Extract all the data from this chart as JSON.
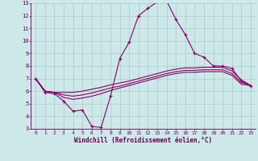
{
  "xlabel": "Windchill (Refroidissement éolien,°C)",
  "bg_color": "#cce8e8",
  "grid_color": "#b0c8c8",
  "line_color": "#880066",
  "axis_color": "#660055",
  "xlim": [
    -0.5,
    23.5
  ],
  "ylim": [
    3,
    13
  ],
  "yticks": [
    3,
    4,
    5,
    6,
    7,
    8,
    9,
    10,
    11,
    12,
    13
  ],
  "xticks": [
    0,
    1,
    2,
    3,
    4,
    5,
    6,
    7,
    8,
    9,
    10,
    11,
    12,
    13,
    14,
    15,
    16,
    17,
    18,
    19,
    20,
    21,
    22,
    23
  ],
  "curve1_x": [
    0,
    1,
    2,
    3,
    4,
    5,
    6,
    7,
    8,
    9,
    10,
    11,
    12,
    13,
    14,
    15,
    16,
    17,
    18,
    19,
    20,
    21,
    22,
    23
  ],
  "curve1_y": [
    7.0,
    5.9,
    5.8,
    5.2,
    4.4,
    4.5,
    3.2,
    3.1,
    5.6,
    8.6,
    9.9,
    12.0,
    12.6,
    13.1,
    13.2,
    11.7,
    10.5,
    9.0,
    8.7,
    8.0,
    8.0,
    7.8,
    6.8,
    6.4
  ],
  "curve2_x": [
    0,
    1,
    2,
    3,
    4,
    5,
    6,
    7,
    8,
    9,
    10,
    11,
    12,
    13,
    14,
    15,
    16,
    17,
    18,
    19,
    20,
    21,
    22,
    23
  ],
  "curve2_y": [
    7.0,
    6.0,
    5.9,
    5.9,
    5.9,
    6.0,
    6.15,
    6.3,
    6.5,
    6.65,
    6.8,
    7.0,
    7.2,
    7.4,
    7.6,
    7.75,
    7.85,
    7.85,
    7.9,
    7.9,
    7.9,
    7.6,
    6.9,
    6.45
  ],
  "curve3_x": [
    0,
    1,
    2,
    3,
    4,
    5,
    6,
    7,
    8,
    9,
    10,
    11,
    12,
    13,
    14,
    15,
    16,
    17,
    18,
    19,
    20,
    21,
    22,
    23
  ],
  "curve3_y": [
    7.0,
    6.0,
    5.9,
    5.7,
    5.6,
    5.7,
    5.85,
    6.05,
    6.25,
    6.4,
    6.6,
    6.8,
    7.0,
    7.2,
    7.4,
    7.55,
    7.65,
    7.65,
    7.7,
    7.7,
    7.7,
    7.4,
    6.7,
    6.45
  ],
  "curve4_x": [
    0,
    1,
    2,
    3,
    4,
    5,
    6,
    7,
    8,
    9,
    10,
    11,
    12,
    13,
    14,
    15,
    16,
    17,
    18,
    19,
    20,
    21,
    22,
    23
  ],
  "curve4_y": [
    7.0,
    6.0,
    5.9,
    5.5,
    5.35,
    5.45,
    5.6,
    5.8,
    6.05,
    6.25,
    6.45,
    6.65,
    6.85,
    7.05,
    7.25,
    7.4,
    7.5,
    7.5,
    7.55,
    7.55,
    7.55,
    7.25,
    6.55,
    6.45
  ]
}
